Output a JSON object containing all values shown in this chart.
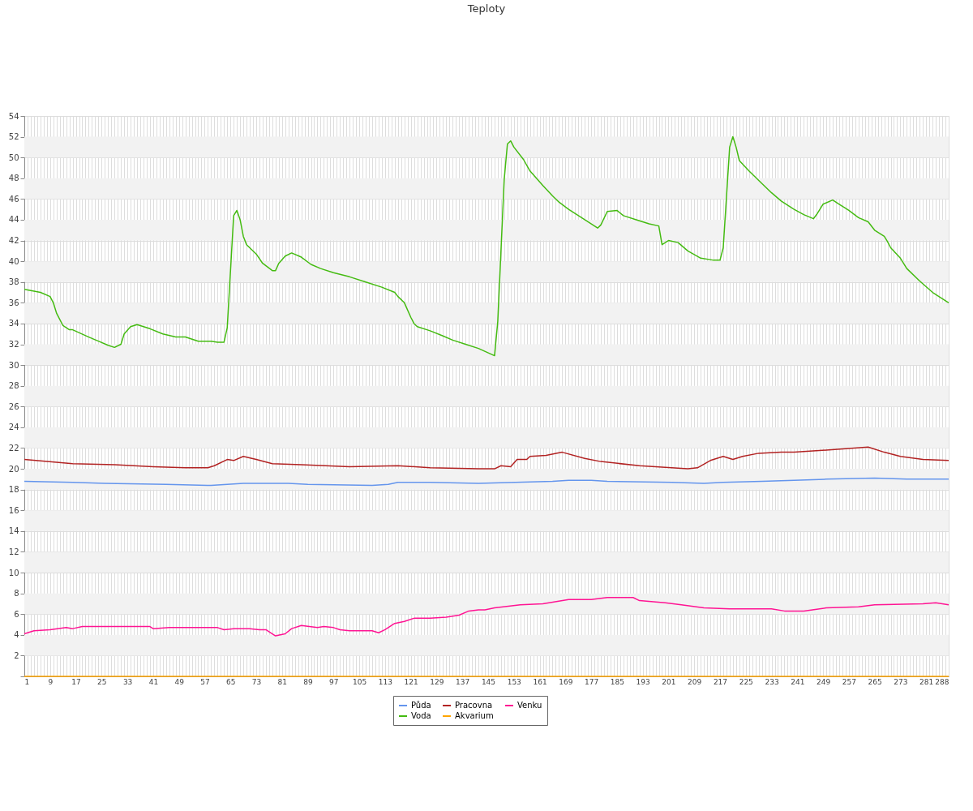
{
  "chart_data": {
    "type": "line",
    "title": "Teploty",
    "xlim": [
      1,
      288
    ],
    "xticks": [
      1,
      {
        "value": 2,
        "label": null
      },
      {
        "value": 3,
        "label": null
      },
      {
        "value": 4,
        "label": null
      },
      {
        "value": 5,
        "label": null
      },
      {
        "value": 6,
        "label": null
      },
      {
        "value": 7,
        "label": null
      },
      {
        "value": 8,
        "label": null
      },
      9,
      {
        "value": 10,
        "label": null
      },
      {
        "value": 11,
        "label": null
      },
      {
        "value": 12,
        "label": null
      },
      {
        "value": 13,
        "label": null
      },
      {
        "value": 14,
        "label": null
      },
      {
        "value": 15,
        "label": null
      },
      {
        "value": 16,
        "label": null
      },
      17,
      {
        "value": 18,
        "label": null
      },
      {
        "value": 19,
        "label": null
      },
      {
        "value": 20,
        "label": null
      },
      {
        "value": 21,
        "label": null
      },
      {
        "value": 22,
        "label": null
      },
      {
        "value": 23,
        "label": null
      },
      {
        "value": 24,
        "label": null
      },
      25,
      {
        "value": 26,
        "label": null
      },
      {
        "value": 27,
        "label": null
      },
      {
        "value": 28,
        "label": null
      },
      {
        "value": 29,
        "label": null
      },
      {
        "value": 30,
        "label": null
      },
      {
        "value": 31,
        "label": null
      },
      {
        "value": 32,
        "label": null
      },
      33,
      {
        "value": 34,
        "label": null
      },
      {
        "value": 35,
        "label": null
      },
      {
        "value": 36,
        "label": null
      },
      {
        "value": 37,
        "label": null
      },
      {
        "value": 38,
        "label": null
      },
      {
        "value": 39,
        "label": null
      },
      {
        "value": 40,
        "label": null
      },
      41,
      {
        "value": 42,
        "label": null
      },
      {
        "value": 43,
        "label": null
      },
      {
        "value": 44,
        "label": null
      },
      {
        "value": 45,
        "label": null
      },
      {
        "value": 46,
        "label": null
      },
      {
        "value": 47,
        "label": null
      },
      {
        "value": 48,
        "label": null
      },
      49,
      {
        "value": 50,
        "label": null
      },
      {
        "value": 51,
        "label": null
      },
      {
        "value": 52,
        "label": null
      },
      {
        "value": 53,
        "label": null
      },
      {
        "value": 54,
        "label": null
      },
      {
        "value": 55,
        "label": null
      },
      {
        "value": 56,
        "label": null
      },
      57,
      {
        "value": 58,
        "label": null
      },
      {
        "value": 59,
        "label": null
      },
      {
        "value": 60,
        "label": null
      },
      {
        "value": 61,
        "label": null
      },
      {
        "value": 62,
        "label": null
      },
      {
        "value": 63,
        "label": null
      },
      {
        "value": 64,
        "label": null
      },
      65,
      {
        "value": 66,
        "label": null
      },
      {
        "value": 67,
        "label": null
      },
      {
        "value": 68,
        "label": null
      },
      {
        "value": 69,
        "label": null
      },
      {
        "value": 70,
        "label": null
      },
      {
        "value": 71,
        "label": null
      },
      {
        "value": 72,
        "label": null
      },
      73,
      {
        "value": 74,
        "label": null
      },
      {
        "value": 75,
        "label": null
      },
      {
        "value": 76,
        "label": null
      },
      {
        "value": 77,
        "label": null
      },
      {
        "value": 78,
        "label": null
      },
      {
        "value": 79,
        "label": null
      },
      {
        "value": 80,
        "label": null
      },
      81,
      {
        "value": 82,
        "label": null
      },
      {
        "value": 83,
        "label": null
      },
      {
        "value": 84,
        "label": null
      },
      {
        "value": 85,
        "label": null
      },
      {
        "value": 86,
        "label": null
      },
      {
        "value": 87,
        "label": null
      },
      {
        "value": 88,
        "label": null
      },
      89,
      {
        "value": 90,
        "label": null
      },
      {
        "value": 91,
        "label": null
      },
      {
        "value": 92,
        "label": null
      },
      {
        "value": 93,
        "label": null
      },
      {
        "value": 94,
        "label": null
      },
      {
        "value": 95,
        "label": null
      },
      {
        "value": 96,
        "label": null
      },
      97,
      {
        "value": 98,
        "label": null
      },
      {
        "value": 99,
        "label": null
      },
      {
        "value": 100,
        "label": null
      },
      {
        "value": 101,
        "label": null
      },
      {
        "value": 102,
        "label": null
      },
      {
        "value": 103,
        "label": null
      },
      {
        "value": 104,
        "label": null
      },
      105,
      {
        "value": 106,
        "label": null
      },
      {
        "value": 107,
        "label": null
      },
      {
        "value": 108,
        "label": null
      },
      {
        "value": 109,
        "label": null
      },
      {
        "value": 110,
        "label": null
      },
      {
        "value": 111,
        "label": null
      },
      {
        "value": 112,
        "label": null
      },
      113,
      {
        "value": 114,
        "label": null
      },
      {
        "value": 115,
        "label": null
      },
      {
        "value": 116,
        "label": null
      },
      {
        "value": 117,
        "label": null
      },
      {
        "value": 118,
        "label": null
      },
      {
        "value": 119,
        "label": null
      },
      {
        "value": 120,
        "label": null
      },
      121,
      {
        "value": 122,
        "label": null
      },
      {
        "value": 123,
        "label": null
      },
      {
        "value": 124,
        "label": null
      },
      {
        "value": 125,
        "label": null
      },
      {
        "value": 126,
        "label": null
      },
      {
        "value": 127,
        "label": null
      },
      {
        "value": 128,
        "label": null
      },
      129,
      {
        "value": 130,
        "label": null
      },
      {
        "value": 131,
        "label": null
      },
      {
        "value": 132,
        "label": null
      },
      {
        "value": 133,
        "label": null
      },
      {
        "value": 134,
        "label": null
      },
      {
        "value": 135,
        "label": null
      },
      {
        "value": 136,
        "label": null
      },
      137,
      {
        "value": 138,
        "label": null
      },
      {
        "value": 139,
        "label": null
      },
      {
        "value": 140,
        "label": null
      },
      {
        "value": 141,
        "label": null
      },
      {
        "value": 142,
        "label": null
      },
      {
        "value": 143,
        "label": null
      },
      {
        "value": 144,
        "label": null
      },
      145,
      {
        "value": 146,
        "label": null
      },
      {
        "value": 147,
        "label": null
      },
      {
        "value": 148,
        "label": null
      },
      {
        "value": 149,
        "label": null
      },
      {
        "value": 150,
        "label": null
      },
      {
        "value": 151,
        "label": null
      },
      {
        "value": 152,
        "label": null
      },
      153,
      {
        "value": 154,
        "label": null
      },
      {
        "value": 155,
        "label": null
      },
      {
        "value": 156,
        "label": null
      },
      {
        "value": 157,
        "label": null
      },
      {
        "value": 158,
        "label": null
      },
      {
        "value": 159,
        "label": null
      },
      {
        "value": 160,
        "label": null
      },
      161,
      {
        "value": 162,
        "label": null
      },
      {
        "value": 163,
        "label": null
      },
      {
        "value": 164,
        "label": null
      },
      {
        "value": 165,
        "label": null
      },
      {
        "value": 166,
        "label": null
      },
      {
        "value": 167,
        "label": null
      },
      {
        "value": 168,
        "label": null
      },
      169,
      {
        "value": 170,
        "label": null
      },
      {
        "value": 171,
        "label": null
      },
      {
        "value": 172,
        "label": null
      },
      {
        "value": 173,
        "label": null
      },
      {
        "value": 174,
        "label": null
      },
      {
        "value": 175,
        "label": null
      },
      {
        "value": 176,
        "label": null
      },
      177,
      {
        "value": 178,
        "label": null
      },
      {
        "value": 179,
        "label": null
      },
      {
        "value": 180,
        "label": null
      },
      {
        "value": 181,
        "label": null
      },
      {
        "value": 182,
        "label": null
      },
      {
        "value": 183,
        "label": null
      },
      {
        "value": 184,
        "label": null
      },
      185,
      {
        "value": 186,
        "label": null
      },
      {
        "value": 187,
        "label": null
      },
      {
        "value": 188,
        "label": null
      },
      {
        "value": 189,
        "label": null
      },
      {
        "value": 190,
        "label": null
      },
      {
        "value": 191,
        "label": null
      },
      {
        "value": 192,
        "label": null
      },
      193,
      {
        "value": 194,
        "label": null
      },
      {
        "value": 195,
        "label": null
      },
      {
        "value": 196,
        "label": null
      },
      {
        "value": 197,
        "label": null
      },
      {
        "value": 198,
        "label": null
      },
      {
        "value": 199,
        "label": null
      },
      {
        "value": 200,
        "label": null
      },
      201,
      {
        "value": 202,
        "label": null
      },
      {
        "value": 203,
        "label": null
      },
      {
        "value": 204,
        "label": null
      },
      {
        "value": 205,
        "label": null
      },
      {
        "value": 206,
        "label": null
      },
      {
        "value": 207,
        "label": null
      },
      {
        "value": 208,
        "label": null
      },
      209,
      {
        "value": 210,
        "label": null
      },
      {
        "value": 211,
        "label": null
      },
      {
        "value": 212,
        "label": null
      },
      {
        "value": 213,
        "label": null
      },
      {
        "value": 214,
        "label": null
      },
      {
        "value": 215,
        "label": null
      },
      {
        "value": 216,
        "label": null
      },
      217,
      {
        "value": 218,
        "label": null
      },
      {
        "value": 219,
        "label": null
      },
      {
        "value": 220,
        "label": null
      },
      {
        "value": 221,
        "label": null
      },
      {
        "value": 222,
        "label": null
      },
      {
        "value": 223,
        "label": null
      },
      {
        "value": 224,
        "label": null
      },
      225,
      {
        "value": 226,
        "label": null
      },
      {
        "value": 227,
        "label": null
      },
      {
        "value": 228,
        "label": null
      },
      {
        "value": 229,
        "label": null
      },
      {
        "value": 230,
        "label": null
      },
      {
        "value": 231,
        "label": null
      },
      {
        "value": 232,
        "label": null
      },
      233,
      {
        "value": 234,
        "label": null
      },
      {
        "value": 235,
        "label": null
      },
      {
        "value": 236,
        "label": null
      },
      {
        "value": 237,
        "label": null
      },
      {
        "value": 238,
        "label": null
      },
      {
        "value": 239,
        "label": null
      },
      {
        "value": 240,
        "label": null
      },
      241,
      {
        "value": 242,
        "label": null
      },
      {
        "value": 243,
        "label": null
      },
      {
        "value": 244,
        "label": null
      },
      {
        "value": 245,
        "label": null
      },
      {
        "value": 246,
        "label": null
      },
      {
        "value": 247,
        "label": null
      },
      {
        "value": 248,
        "label": null
      },
      249,
      {
        "value": 250,
        "label": null
      },
      {
        "value": 251,
        "label": null
      },
      {
        "value": 252,
        "label": null
      },
      {
        "value": 253,
        "label": null
      },
      {
        "value": 254,
        "label": null
      },
      {
        "value": 255,
        "label": null
      },
      {
        "value": 256,
        "label": null
      },
      257,
      {
        "value": 258,
        "label": null
      },
      {
        "value": 259,
        "label": null
      },
      {
        "value": 260,
        "label": null
      },
      {
        "value": 261,
        "label": null
      },
      {
        "value": 262,
        "label": null
      },
      {
        "value": 263,
        "label": null
      },
      {
        "value": 264,
        "label": null
      },
      265,
      {
        "value": 266,
        "label": null
      },
      {
        "value": 267,
        "label": null
      },
      {
        "value": 268,
        "label": null
      },
      {
        "value": 269,
        "label": null
      },
      {
        "value": 270,
        "label": null
      },
      {
        "value": 271,
        "label": null
      },
      {
        "value": 272,
        "label": null
      },
      273,
      {
        "value": 274,
        "label": null
      },
      {
        "value": 275,
        "label": null
      },
      {
        "value": 276,
        "label": null
      },
      {
        "value": 277,
        "label": null
      },
      {
        "value": 278,
        "label": null
      },
      {
        "value": 279,
        "label": null
      },
      {
        "value": 280,
        "label": null
      },
      281,
      {
        "value": 282,
        "label": null
      },
      {
        "value": 283,
        "label": null
      },
      {
        "value": 284,
        "label": null
      },
      {
        "value": 285,
        "label": null
      },
      {
        "value": 286,
        "label": null
      },
      {
        "value": 287,
        "label": null
      },
      288
    ],
    "ylim": [
      0,
      54
    ],
    "yticks": [
      {
        "value": 0,
        "label": null
      },
      2,
      4,
      6,
      8,
      10,
      12,
      14,
      16,
      18,
      20,
      22,
      24,
      26,
      28,
      30,
      32,
      34,
      36,
      38,
      40,
      42,
      44,
      46,
      48,
      50,
      52,
      54
    ],
    "grid": true,
    "legend": "bottom",
    "line_style": "solid",
    "marker": "none",
    "bands": [
      {
        "axis": "y",
        "from": 2,
        "to": 4,
        "color": "#f2f2f2"
      },
      {
        "axis": "y",
        "from": 6,
        "to": 8,
        "color": "#f2f2f2"
      },
      {
        "axis": "y",
        "from": 10,
        "to": 12,
        "color": "#f2f2f2"
      },
      {
        "axis": "y",
        "from": 14,
        "to": 16,
        "color": "#f2f2f2"
      },
      {
        "axis": "y",
        "from": 18,
        "to": 20,
        "color": "#f2f2f2"
      },
      {
        "axis": "y",
        "from": 22,
        "to": 24,
        "color": "#f2f2f2"
      },
      {
        "axis": "y",
        "from": 26,
        "to": 28,
        "color": "#f2f2f2"
      },
      {
        "axis": "y",
        "from": 30,
        "to": 32,
        "color": "#f2f2f2"
      },
      {
        "axis": "y",
        "from": 34,
        "to": 36,
        "color": "#f2f2f2"
      },
      {
        "axis": "y",
        "from": 38,
        "to": 40,
        "color": "#f2f2f2"
      },
      {
        "axis": "y",
        "from": 42,
        "to": 44,
        "color": "#f2f2f2"
      },
      {
        "axis": "y",
        "from": 46,
        "to": 48,
        "color": "#f2f2f2"
      },
      {
        "axis": "y",
        "from": 50,
        "to": 52,
        "color": "#f2f2f2"
      }
    ],
    "series": [
      {
        "name": "Půda",
        "color": "#6495ed",
        "x": [
          1,
          16,
          26,
          45,
          59,
          64,
          69,
          83,
          89,
          109,
          114,
          117,
          127,
          142,
          165,
          170,
          177,
          182,
          202,
          212,
          218,
          230,
          240,
          250,
          265,
          275,
          288
        ],
        "values": [
          18.8,
          18.7,
          18.6,
          18.5,
          18.4,
          18.5,
          18.6,
          18.6,
          18.5,
          18.4,
          18.5,
          18.7,
          18.7,
          18.6,
          18.8,
          18.9,
          18.9,
          18.8,
          18.7,
          18.6,
          18.7,
          18.8,
          18.9,
          19.0,
          19.1,
          19.0,
          19.0
        ]
      },
      {
        "name": "Voda",
        "color": "#44bb11",
        "x": [
          1,
          6,
          9,
          10,
          11,
          13,
          15,
          16,
          21,
          24,
          27,
          29,
          31,
          32,
          34,
          36,
          40,
          44,
          48,
          51,
          55,
          59,
          61,
          63,
          64,
          66,
          67,
          68,
          69,
          70,
          73,
          75,
          78,
          79,
          80,
          82,
          84,
          87,
          90,
          93,
          97,
          102,
          107,
          112,
          116,
          117,
          119,
          121,
          122,
          123,
          127,
          131,
          134,
          138,
          142,
          147,
          148,
          150,
          151,
          152,
          153,
          156,
          158,
          162,
          165,
          167,
          170,
          175,
          179,
          180,
          182,
          185,
          187,
          191,
          195,
          198,
          199,
          201,
          204,
          207,
          211,
          215,
          217,
          218,
          220,
          221,
          222,
          223,
          226,
          230,
          233,
          236,
          240,
          243,
          246,
          247,
          249,
          252,
          254,
          257,
          260,
          263,
          265,
          268,
          269,
          270,
          273,
          275,
          279,
          283,
          288
        ],
        "values": [
          37.3,
          37.0,
          36.6,
          36.0,
          35.0,
          33.8,
          33.4,
          33.4,
          32.7,
          32.3,
          31.9,
          31.7,
          32.0,
          33.0,
          33.7,
          33.9,
          33.5,
          33.0,
          32.7,
          32.7,
          32.3,
          32.3,
          32.2,
          32.2,
          33.6,
          44.4,
          44.9,
          44.0,
          42.4,
          41.6,
          40.7,
          39.8,
          39.1,
          39.1,
          39.8,
          40.5,
          40.8,
          40.4,
          39.7,
          39.3,
          38.9,
          38.5,
          38.0,
          37.5,
          37.0,
          36.6,
          36.0,
          34.6,
          34.0,
          33.7,
          33.3,
          32.8,
          32.4,
          32.0,
          31.6,
          30.9,
          34.2,
          47.9,
          51.3,
          51.6,
          51.0,
          49.8,
          48.7,
          47.3,
          46.3,
          45.7,
          45.0,
          44.0,
          43.2,
          43.5,
          44.8,
          44.9,
          44.4,
          44.0,
          43.6,
          43.4,
          41.6,
          42.0,
          41.8,
          41.0,
          40.3,
          40.1,
          40.1,
          41.3,
          51.0,
          52.0,
          51.0,
          49.7,
          48.7,
          47.5,
          46.6,
          45.8,
          45.0,
          44.5,
          44.1,
          44.5,
          45.5,
          45.9,
          45.5,
          44.9,
          44.2,
          43.8,
          43.0,
          42.4,
          41.9,
          41.3,
          40.3,
          39.3,
          38.1,
          37.0,
          36.0
        ]
      },
      {
        "name": "Pracovna",
        "color": "#b22222",
        "x": [
          1,
          16,
          29,
          41,
          51,
          58,
          60,
          64,
          66,
          69,
          73,
          78,
          87,
          102,
          117,
          127,
          142,
          147,
          149,
          152,
          154,
          157,
          158,
          163,
          168,
          175,
          180,
          192,
          207,
          210,
          214,
          218,
          221,
          224,
          229,
          236,
          240,
          250,
          263,
          268,
          273,
          280,
          288
        ],
        "values": [
          20.9,
          20.5,
          20.4,
          20.2,
          20.1,
          20.1,
          20.3,
          20.9,
          20.8,
          21.2,
          20.9,
          20.5,
          20.4,
          20.2,
          20.3,
          20.1,
          20.0,
          20.0,
          20.3,
          20.2,
          20.9,
          20.9,
          21.2,
          21.3,
          21.6,
          21.0,
          20.7,
          20.3,
          20.0,
          20.1,
          20.8,
          21.2,
          20.9,
          21.2,
          21.5,
          21.6,
          21.6,
          21.8,
          22.1,
          21.6,
          21.2,
          20.9,
          20.8
        ]
      },
      {
        "name": "Akvarium",
        "color": "#ffa500",
        "x": [
          1,
          288
        ],
        "values": [
          0,
          0
        ]
      },
      {
        "name": "Venku",
        "color": "#ff1493",
        "x": [
          1,
          4,
          9,
          14,
          16,
          19,
          29,
          36,
          40,
          41,
          46,
          61,
          63,
          66,
          71,
          74,
          76,
          78,
          79,
          82,
          84,
          87,
          92,
          94,
          97,
          99,
          102,
          109,
          111,
          113,
          116,
          119,
          122,
          127,
          132,
          136,
          139,
          142,
          144,
          147,
          155,
          162,
          170,
          177,
          182,
          190,
          192,
          200,
          205,
          212,
          220,
          233,
          237,
          243,
          250,
          260,
          265,
          280,
          284,
          288
        ],
        "values": [
          4.1,
          4.4,
          4.5,
          4.7,
          4.6,
          4.8,
          4.8,
          4.8,
          4.8,
          4.6,
          4.7,
          4.7,
          4.5,
          4.6,
          4.6,
          4.5,
          4.5,
          4.1,
          3.9,
          4.1,
          4.6,
          4.9,
          4.7,
          4.8,
          4.7,
          4.5,
          4.4,
          4.4,
          4.2,
          4.5,
          5.1,
          5.3,
          5.6,
          5.6,
          5.7,
          5.9,
          6.3,
          6.4,
          6.4,
          6.6,
          6.9,
          7.0,
          7.4,
          7.4,
          7.6,
          7.6,
          7.3,
          7.1,
          6.9,
          6.6,
          6.5,
          6.5,
          6.3,
          6.3,
          6.6,
          6.7,
          6.9,
          7.0,
          7.1,
          6.9
        ]
      }
    ]
  }
}
